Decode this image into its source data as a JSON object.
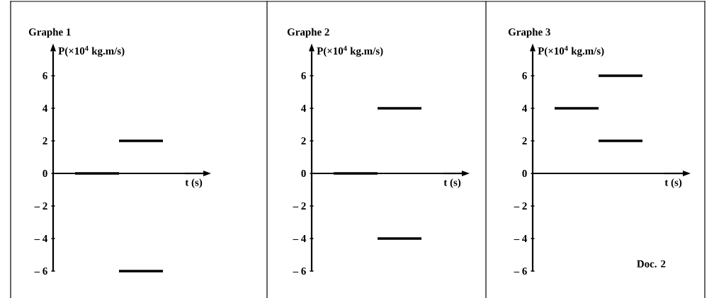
{
  "chart_data": [
    {
      "type": "line",
      "title": "Graphe 1",
      "xlabel": "t (s)",
      "ylabel": "P(×10$^{4}$ kg.m/s)",
      "categories": [
        null,
        null,
        null
      ],
      "marker": "none",
      "series": [
        {
          "color": "#000000",
          "values": [
            0,
            0,
            null
          ]
        },
        {
          "color": "#000000",
          "values": [
            null,
            2,
            2
          ]
        },
        {
          "color": "#000000",
          "values": [
            null,
            -6,
            -6
          ]
        }
      ],
      "ylim": [
        -6,
        7.5
      ],
      "yticks": [
        {
          "value": -6,
          "label": "– 6"
        },
        {
          "value": -4,
          "label": "– 4"
        },
        {
          "value": -2,
          "label": "– 2"
        },
        0,
        2,
        4,
        6
      ]
    },
    {
      "type": "line",
      "title": "Graphe 2",
      "xlabel": "t (s)",
      "ylabel": "P(×10$^{4}$ kg.m/s)",
      "categories": [
        null,
        null,
        null
      ],
      "marker": "none",
      "series": [
        {
          "color": "#000000",
          "values": [
            0,
            0,
            null
          ]
        },
        {
          "color": "#000000",
          "values": [
            null,
            4,
            4
          ]
        },
        {
          "color": "#000000",
          "values": [
            null,
            -4,
            -4
          ]
        }
      ],
      "ylim": [
        -6,
        7.5
      ],
      "yticks": [
        {
          "value": -6,
          "label": "– 6"
        },
        {
          "value": -4,
          "label": "– 4"
        },
        {
          "value": -2,
          "label": "– 2"
        },
        0,
        2,
        4,
        6
      ]
    },
    {
      "type": "line",
      "title": "Graphe 3",
      "xlabel": "t (s)",
      "ylabel": "P(×10$^{4}$ kg.m/s)",
      "categories": [
        null,
        null,
        null
      ],
      "marker": "none",
      "annotations": [
        "Doc. 2"
      ],
      "series": [
        {
          "color": "#000000",
          "values": [
            4,
            4,
            null
          ]
        },
        {
          "color": "#000000",
          "values": [
            null,
            6,
            6
          ]
        },
        {
          "color": "#000000",
          "values": [
            null,
            2,
            2
          ]
        }
      ],
      "ylim": [
        -6,
        7.5
      ],
      "yticks": [
        {
          "value": -6,
          "label": "– 6"
        },
        {
          "value": -4,
          "label": "– 4"
        },
        {
          "value": -2,
          "label": "– 2"
        },
        0,
        2,
        4,
        6
      ]
    }
  ]
}
